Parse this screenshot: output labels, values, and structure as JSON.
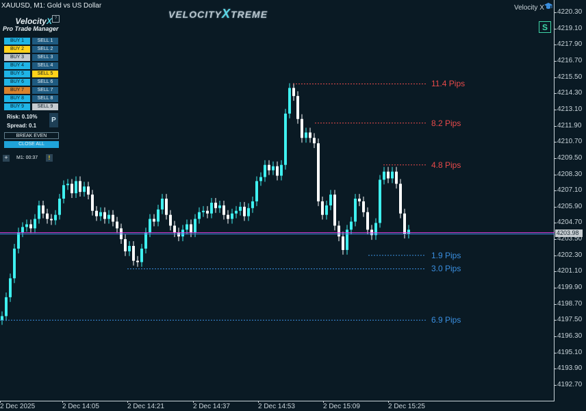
{
  "header": {
    "symbol": "XAUUSD, M1:  Gold vs US Dollar",
    "logo_left": "VELOCITY",
    "logo_x": "X",
    "logo_right": "TREME",
    "indicator_label": "Velocity X",
    "indicator_icon": "graduation-cap-icon",
    "s_button": "S"
  },
  "panel": {
    "brand_v": "Velocity",
    "brand_x": "X",
    "brand_sub": "Pro Trade Manager",
    "brand_badge": "?",
    "buy_buttons": [
      {
        "label": "BUY 1",
        "color": "#1fb4e6"
      },
      {
        "label": "BUY 2",
        "color": "#ffd21a"
      },
      {
        "label": "BUY 3",
        "color": "#c5cbd0"
      },
      {
        "label": "BUY 4",
        "color": "#1fb4e6"
      },
      {
        "label": "BUY 5",
        "color": "#1fb4e6"
      },
      {
        "label": "BUY 6",
        "color": "#1fb4e6"
      },
      {
        "label": "BUY 7",
        "color": "#d9822b"
      },
      {
        "label": "BUY 8",
        "color": "#1fb4e6"
      },
      {
        "label": "BUY 9",
        "color": "#1fb4e6"
      }
    ],
    "sell_buttons": [
      {
        "label": "SELL 1",
        "color": "#1e5a80"
      },
      {
        "label": "SELL 2",
        "color": "#1e5a80"
      },
      {
        "label": "SELL 3",
        "color": "#1e5a80"
      },
      {
        "label": "SELL 4",
        "color": "#1e5a80"
      },
      {
        "label": "SELL 5",
        "color": "#ffd21a"
      },
      {
        "label": "SELL 6",
        "color": "#1e5a80"
      },
      {
        "label": "SELL 7",
        "color": "#1e5a80"
      },
      {
        "label": "SELL 8",
        "color": "#1e5a80"
      },
      {
        "label": "SELL 9",
        "color": "#c5cbd0"
      }
    ],
    "risk": "Risk: 0.10%",
    "spread": "Spread: 0.1",
    "p_button": "P",
    "break_even": "BREAK EVEN",
    "close_all": "CLOSE ALL",
    "plus_button": "+",
    "timer": "M1: 00:37",
    "warning_button": "!"
  },
  "price_axis": [
    "4220.30",
    "4219.10",
    "4217.90",
    "4216.70",
    "4215.50",
    "4214.30",
    "4213.10",
    "4211.90",
    "4210.70",
    "4209.50",
    "4208.30",
    "4207.10",
    "4205.90",
    "4204.70",
    "4203.50",
    "4202.30",
    "4201.10",
    "4199.90",
    "4198.70",
    "4197.50",
    "4196.30",
    "4195.10",
    "4193.90",
    "4192.70"
  ],
  "time_axis": [
    "2 Dec 2025",
    "2 Dec 14:05",
    "2 Dec 14:21",
    "2 Dec 14:37",
    "2 Dec 14:53",
    "2 Dec 15:09",
    "2 Dec 15:25"
  ],
  "current_price": "4203.98",
  "pip_labels": [
    {
      "text": "11.4 Pips",
      "color": "#e84a4a",
      "price": 4215.0
    },
    {
      "text": "8.2 Pips",
      "color": "#e84a4a",
      "price": 4212.1
    },
    {
      "text": "4.8 Pips",
      "color": "#e84a4a",
      "price": 4209.0
    },
    {
      "text": "1.9 Pips",
      "color": "#3a8fe0",
      "price": 4202.3
    },
    {
      "text": "3.0 Pips",
      "color": "#3a8fe0",
      "price": 4201.3
    },
    {
      "text": "6.9 Pips",
      "color": "#3a8fe0",
      "price": 4197.5
    }
  ],
  "chart_data": {
    "type": "candlestick",
    "bull_color": "#3ff0f0",
    "bear_color": "#ffffff",
    "bid_line_color": "#e040e0",
    "ask_line_color": "#3a8fe0",
    "ylim": [
      4191.5,
      4221.0
    ],
    "closes": [
      4197.8,
      4199.2,
      4200.6,
      4202.8,
      4204.0,
      4204.4,
      4204.6,
      4204.3,
      4205.0,
      4206.0,
      4205.4,
      4205.0,
      4204.9,
      4205.3,
      4206.5,
      4207.5,
      4207.6,
      4206.9,
      4207.8,
      4207.0,
      4207.4,
      4206.8,
      4205.6,
      4205.2,
      4205.5,
      4205.0,
      4205.3,
      4204.8,
      4204.3,
      4203.5,
      4202.6,
      4203.0,
      4201.9,
      4201.8,
      4202.8,
      4204.0,
      4205.0,
      4204.8,
      4205.7,
      4206.5,
      4205.3,
      4204.5,
      4204.0,
      4203.7,
      4204.2,
      4204.6,
      4204.0,
      4205.0,
      4205.5,
      4205.6,
      4205.4,
      4206.2,
      4205.8,
      4206.0,
      4205.3,
      4205.0,
      4205.4,
      4205.6,
      4205.9,
      4205.2,
      4205.8,
      4206.3,
      4207.8,
      4208.1,
      4209.0,
      4208.6,
      4208.9,
      4208.2,
      4209.0,
      4212.8,
      4214.7,
      4214.1,
      4212.4,
      4211.0,
      4211.4,
      4211.0,
      4210.6,
      4206.3,
      4205.3,
      4206.0,
      4206.8,
      4204.5,
      4203.7,
      4202.7,
      4204.2,
      4204.8,
      4206.5,
      4206.3,
      4205.5,
      4204.2,
      4203.8,
      4204.7,
      4207.9,
      4208.5,
      4208.0,
      4208.5,
      4207.6,
      4205.4,
      4203.9,
      4204.2
    ],
    "opens": [
      4197.5,
      4197.8,
      4199.2,
      4200.6,
      4202.8,
      4204.0,
      4204.4,
      4204.6,
      4204.3,
      4205.0,
      4206.0,
      4205.4,
      4205.0,
      4204.9,
      4205.3,
      4206.5,
      4207.5,
      4207.6,
      4206.9,
      4207.8,
      4207.0,
      4207.4,
      4206.8,
      4205.6,
      4205.2,
      4205.5,
      4205.0,
      4205.3,
      4204.8,
      4204.3,
      4203.5,
      4202.6,
      4203.0,
      4201.9,
      4201.8,
      4202.8,
      4204.0,
      4205.0,
      4204.8,
      4205.7,
      4206.5,
      4205.3,
      4204.5,
      4204.0,
      4203.7,
      4204.2,
      4204.6,
      4204.0,
      4205.0,
      4205.5,
      4205.6,
      4205.4,
      4206.2,
      4205.8,
      4206.0,
      4205.3,
      4205.0,
      4205.4,
      4205.6,
      4205.9,
      4205.2,
      4205.8,
      4206.3,
      4207.8,
      4208.1,
      4209.0,
      4208.6,
      4208.9,
      4208.2,
      4209.0,
      4212.8,
      4214.7,
      4214.1,
      4212.4,
      4211.0,
      4211.4,
      4211.0,
      4210.6,
      4206.3,
      4205.3,
      4206.0,
      4206.8,
      4204.5,
      4203.7,
      4202.7,
      4204.2,
      4204.8,
      4206.5,
      4206.3,
      4205.5,
      4204.2,
      4203.8,
      4204.7,
      4207.9,
      4208.5,
      4208.0,
      4208.5,
      4207.6,
      4205.4,
      4203.9
    ]
  }
}
